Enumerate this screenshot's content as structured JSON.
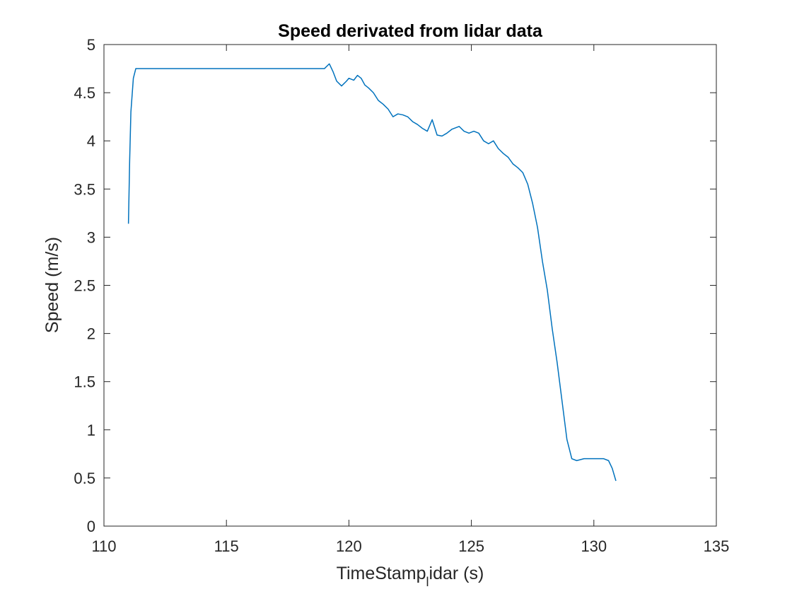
{
  "chart_data": {
    "type": "line",
    "title": "Speed derivated from lidar data",
    "xlabel_main": "TimeStamp",
    "xlabel_sub": "l",
    "xlabel_tail": "idar (s)",
    "ylabel": "Speed (m/s)",
    "xlim": [
      110,
      135
    ],
    "ylim": [
      0,
      5
    ],
    "xticks": [
      110,
      115,
      120,
      125,
      130,
      135
    ],
    "xtick_labels": [
      "110",
      "115",
      "120",
      "125",
      "130",
      "135"
    ],
    "yticks": [
      0,
      0.5,
      1,
      1.5,
      2,
      2.5,
      3,
      3.5,
      4,
      4.5,
      5
    ],
    "ytick_labels": [
      "0",
      "0.5",
      "1",
      "1.5",
      "2",
      "2.5",
      "3",
      "3.5",
      "4",
      "4.5",
      "5"
    ],
    "grid": false,
    "line_color": "#0072BD",
    "series": [
      {
        "x": [
          111.0,
          111.05,
          111.1,
          111.2,
          111.3,
          111.5,
          112.0,
          113.0,
          114.0,
          115.0,
          116.0,
          117.0,
          118.0,
          119.0,
          119.2,
          119.35,
          119.5,
          119.7,
          119.9,
          120.0,
          120.2,
          120.35,
          120.5,
          120.65,
          120.8,
          121.0,
          121.2,
          121.4,
          121.6,
          121.8,
          122.0,
          122.2,
          122.4,
          122.6,
          122.8,
          123.0,
          123.2,
          123.4,
          123.6,
          123.8,
          124.0,
          124.2,
          124.5,
          124.7,
          124.9,
          125.1,
          125.3,
          125.5,
          125.7,
          125.9,
          126.1,
          126.3,
          126.5,
          126.7,
          126.9,
          127.1,
          127.3,
          127.5,
          127.7,
          127.9,
          128.1,
          128.3,
          128.5,
          128.7,
          128.9,
          129.1,
          129.3,
          129.45,
          129.6,
          129.8,
          130.0,
          130.2,
          130.4,
          130.6,
          130.75,
          130.9
        ],
        "y": [
          3.14,
          3.8,
          4.3,
          4.65,
          4.75,
          4.75,
          4.75,
          4.75,
          4.75,
          4.75,
          4.75,
          4.75,
          4.75,
          4.75,
          4.8,
          4.72,
          4.62,
          4.57,
          4.62,
          4.65,
          4.63,
          4.68,
          4.65,
          4.58,
          4.55,
          4.5,
          4.42,
          4.38,
          4.33,
          4.25,
          4.28,
          4.27,
          4.25,
          4.2,
          4.17,
          4.13,
          4.1,
          4.22,
          4.06,
          4.05,
          4.08,
          4.12,
          4.15,
          4.1,
          4.08,
          4.1,
          4.08,
          4.0,
          3.97,
          4.0,
          3.92,
          3.87,
          3.83,
          3.76,
          3.72,
          3.67,
          3.55,
          3.35,
          3.1,
          2.75,
          2.45,
          2.05,
          1.7,
          1.3,
          0.9,
          0.7,
          0.68,
          0.69,
          0.7,
          0.7,
          0.7,
          0.7,
          0.7,
          0.68,
          0.6,
          0.47
        ]
      }
    ]
  }
}
